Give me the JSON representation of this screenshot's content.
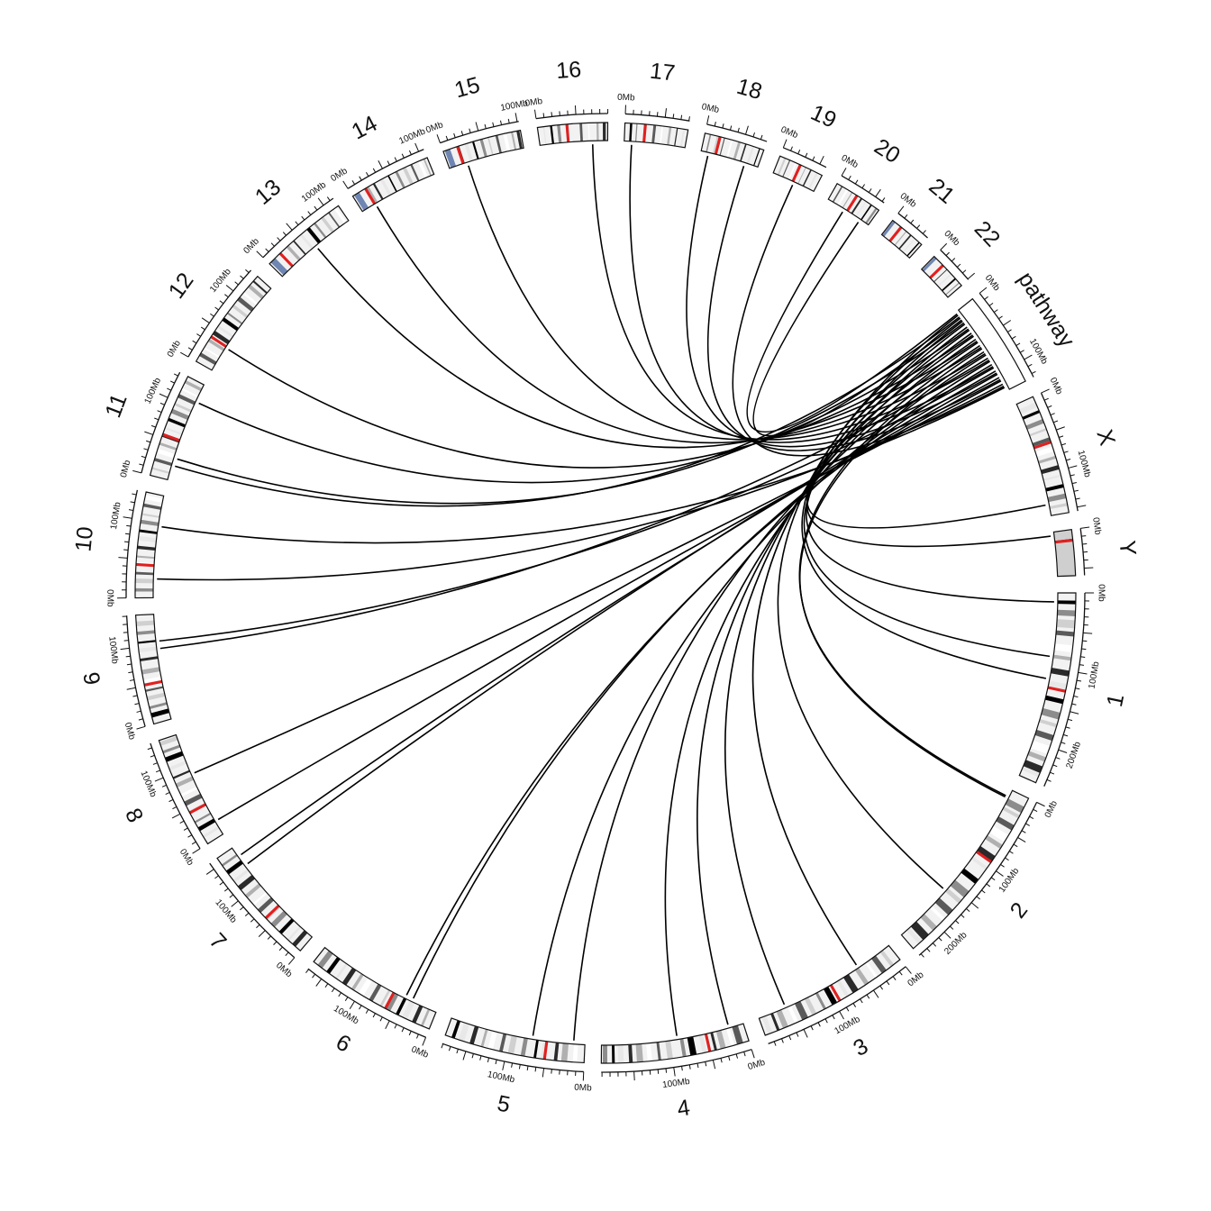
{
  "chart_data": {
    "type": "circos",
    "tick_label_suffix": "Mb",
    "sectors": [
      {
        "name": "1",
        "length": 249,
        "kind": "chr",
        "bands": [
          0.04,
          0.09,
          0.14,
          0.2,
          0.27,
          0.33,
          0.4,
          0.47,
          0.55,
          0.62,
          0.68,
          0.74,
          0.8,
          0.86,
          0.91,
          0.95
        ],
        "centromere": 0.5
      },
      {
        "name": "2",
        "length": 243,
        "kind": "chr",
        "bands": [
          0.05,
          0.1,
          0.16,
          0.22,
          0.28,
          0.35,
          0.42,
          0.5,
          0.58,
          0.64,
          0.71,
          0.77,
          0.83,
          0.89,
          0.94
        ],
        "centromere": 0.38
      },
      {
        "name": "3",
        "length": 198,
        "kind": "chr",
        "bands": [
          0.05,
          0.11,
          0.18,
          0.25,
          0.33,
          0.4,
          0.49,
          0.57,
          0.64,
          0.7,
          0.77,
          0.84,
          0.9,
          0.95
        ],
        "centromere": 0.46
      },
      {
        "name": "4",
        "length": 191,
        "kind": "chr",
        "bands": [
          0.04,
          0.1,
          0.16,
          0.22,
          0.29,
          0.36,
          0.43,
          0.52,
          0.6,
          0.66,
          0.72,
          0.79,
          0.85,
          0.91,
          0.96
        ],
        "centromere": 0.26
      },
      {
        "name": "5",
        "length": 181,
        "kind": "chr",
        "bands": [
          0.05,
          0.12,
          0.19,
          0.27,
          0.34,
          0.42,
          0.5,
          0.58,
          0.65,
          0.72,
          0.79,
          0.86,
          0.93
        ],
        "centromere": 0.27
      },
      {
        "name": "6",
        "length": 171,
        "kind": "chr",
        "bands": [
          0.05,
          0.11,
          0.18,
          0.25,
          0.32,
          0.39,
          0.47,
          0.55,
          0.63,
          0.7,
          0.78,
          0.85,
          0.92
        ],
        "centromere": 0.35
      },
      {
        "name": "7",
        "length": 159,
        "kind": "chr",
        "bands": [
          0.05,
          0.12,
          0.2,
          0.28,
          0.36,
          0.44,
          0.52,
          0.6,
          0.68,
          0.76,
          0.84,
          0.92
        ],
        "centromere": 0.37
      },
      {
        "name": "8",
        "length": 146,
        "kind": "chr",
        "bands": [
          0.06,
          0.13,
          0.21,
          0.3,
          0.38,
          0.47,
          0.56,
          0.64,
          0.72,
          0.8,
          0.88,
          0.95
        ],
        "centromere": 0.3
      },
      {
        "name": "9",
        "length": 141,
        "kind": "chr",
        "bands": [
          0.06,
          0.14,
          0.22,
          0.3,
          0.38,
          0.46,
          0.58,
          0.66,
          0.74,
          0.82,
          0.9
        ],
        "centromere": 0.35
      },
      {
        "name": "10",
        "length": 136,
        "kind": "chr",
        "bands": [
          0.06,
          0.14,
          0.22,
          0.3,
          0.38,
          0.46,
          0.54,
          0.62,
          0.7,
          0.78,
          0.86,
          0.93
        ],
        "centromere": 0.3
      },
      {
        "name": "11",
        "length": 135,
        "kind": "chr",
        "bands": [
          0.06,
          0.14,
          0.22,
          0.3,
          0.38,
          0.46,
          0.54,
          0.62,
          0.7,
          0.78,
          0.86,
          0.93
        ],
        "centromere": 0.39
      },
      {
        "name": "12",
        "length": 134,
        "kind": "chr",
        "bands": [
          0.06,
          0.14,
          0.22,
          0.3,
          0.38,
          0.46,
          0.54,
          0.62,
          0.7,
          0.78,
          0.86,
          0.93
        ],
        "centromere": 0.26
      },
      {
        "name": "13",
        "length": 115,
        "kind": "chr",
        "bands": [
          0.16,
          0.26,
          0.36,
          0.46,
          0.56,
          0.66,
          0.76,
          0.86,
          0.94
        ],
        "centromere": 0.15,
        "acro": true
      },
      {
        "name": "14",
        "length": 107,
        "kind": "chr",
        "bands": [
          0.18,
          0.28,
          0.38,
          0.48,
          0.58,
          0.68,
          0.78,
          0.88,
          0.95
        ],
        "centromere": 0.16,
        "acro": true
      },
      {
        "name": "15",
        "length": 102,
        "kind": "chr",
        "bands": [
          0.18,
          0.28,
          0.38,
          0.48,
          0.58,
          0.68,
          0.78,
          0.88,
          0.95
        ],
        "centromere": 0.17,
        "acro": true
      },
      {
        "name": "16",
        "length": 90,
        "kind": "chr",
        "bands": [
          0.08,
          0.18,
          0.28,
          0.4,
          0.6,
          0.72,
          0.84,
          0.93
        ],
        "centromere": 0.4
      },
      {
        "name": "17",
        "length": 81,
        "kind": "chr",
        "bands": [
          0.08,
          0.18,
          0.3,
          0.45,
          0.58,
          0.7,
          0.82,
          0.92
        ],
        "centromere": 0.3
      },
      {
        "name": "18",
        "length": 78,
        "kind": "chr",
        "bands": [
          0.08,
          0.2,
          0.32,
          0.44,
          0.56,
          0.68,
          0.8,
          0.92
        ],
        "centromere": 0.23
      },
      {
        "name": "19",
        "length": 59,
        "kind": "chr",
        "bands": [
          0.1,
          0.22,
          0.36,
          0.6,
          0.72,
          0.86
        ],
        "centromere": 0.45
      },
      {
        "name": "20",
        "length": 63,
        "kind": "chr",
        "bands": [
          0.1,
          0.22,
          0.34,
          0.56,
          0.68,
          0.8,
          0.92
        ],
        "centromere": 0.44
      },
      {
        "name": "21",
        "length": 48,
        "kind": "chr",
        "bands": [
          0.3,
          0.45,
          0.6,
          0.75,
          0.9
        ],
        "centromere": 0.25,
        "acro": true
      },
      {
        "name": "22",
        "length": 51,
        "kind": "chr",
        "bands": [
          0.3,
          0.45,
          0.6,
          0.75,
          0.9
        ],
        "centromere": 0.28,
        "acro": true
      },
      {
        "name": "pathway",
        "length": 125,
        "kind": "blank",
        "bands": [],
        "centromere": null
      },
      {
        "name": "X",
        "length": 155,
        "kind": "chr",
        "bands": [
          0.05,
          0.12,
          0.2,
          0.28,
          0.36,
          0.44,
          0.52,
          0.6,
          0.68,
          0.76,
          0.84,
          0.92
        ],
        "centromere": 0.39
      },
      {
        "name": "Y",
        "length": 59,
        "kind": "chr",
        "bands": [
          0.2
        ],
        "centromere": 0.2,
        "pale": true
      }
    ],
    "links": [
      {
        "from": [
          "1",
          115
        ],
        "to": [
          "pathway",
          10
        ]
      },
      {
        "from": [
          "1",
          85
        ],
        "to": [
          "pathway",
          20
        ]
      },
      {
        "from": [
          "1",
          12
        ],
        "to": [
          "pathway",
          30
        ]
      },
      {
        "from": [
          "Y",
          5
        ],
        "to": [
          "pathway",
          40
        ]
      },
      {
        "from": [
          "X",
          140
        ],
        "to": [
          "pathway",
          50
        ]
      },
      {
        "from": [
          "2",
          10
        ],
        "to": [
          "pathway",
          60
        ]
      },
      {
        "from": [
          "2",
          12
        ],
        "to": [
          "pathway",
          65
        ]
      },
      {
        "from": [
          "2",
          160
        ],
        "to": [
          "pathway",
          5
        ]
      },
      {
        "from": [
          "3",
          50
        ],
        "to": [
          "pathway",
          15
        ]
      },
      {
        "from": [
          "3",
          160
        ],
        "to": [
          "pathway",
          25
        ]
      },
      {
        "from": [
          "4",
          20
        ],
        "to": [
          "pathway",
          35
        ]
      },
      {
        "from": [
          "4",
          90
        ],
        "to": [
          "pathway",
          45
        ]
      },
      {
        "from": [
          "5",
          15
        ],
        "to": [
          "pathway",
          55
        ]
      },
      {
        "from": [
          "5",
          70
        ],
        "to": [
          "pathway",
          70
        ]
      },
      {
        "from": [
          "6",
          35
        ],
        "to": [
          "pathway",
          80
        ]
      },
      {
        "from": [
          "6",
          45
        ],
        "to": [
          "pathway",
          85
        ]
      },
      {
        "from": [
          "7",
          130
        ],
        "to": [
          "pathway",
          95
        ]
      },
      {
        "from": [
          "7",
          145
        ],
        "to": [
          "pathway",
          100
        ]
      },
      {
        "from": [
          "8",
          20
        ],
        "to": [
          "pathway",
          105
        ]
      },
      {
        "from": [
          "8",
          90
        ],
        "to": [
          "pathway",
          110
        ]
      },
      {
        "from": [
          "9",
          95
        ],
        "to": [
          "pathway",
          75
        ]
      },
      {
        "from": [
          "9",
          105
        ],
        "to": [
          "pathway",
          90
        ]
      },
      {
        "from": [
          "10",
          25
        ],
        "to": [
          "pathway",
          115
        ]
      },
      {
        "from": [
          "10",
          95
        ],
        "to": [
          "pathway",
          120
        ]
      },
      {
        "from": [
          "11",
          20
        ],
        "to": [
          "pathway",
          8
        ]
      },
      {
        "from": [
          "11",
          30
        ],
        "to": [
          "pathway",
          18
        ]
      },
      {
        "from": [
          "11",
          110
        ],
        "to": [
          "pathway",
          28
        ]
      },
      {
        "from": [
          "12",
          35
        ],
        "to": [
          "pathway",
          38
        ]
      },
      {
        "from": [
          "13",
          60
        ],
        "to": [
          "pathway",
          48
        ]
      },
      {
        "from": [
          "14",
          20
        ],
        "to": [
          "pathway",
          58
        ]
      },
      {
        "from": [
          "15",
          25
        ],
        "to": [
          "pathway",
          68
        ]
      },
      {
        "from": [
          "16",
          70
        ],
        "to": [
          "pathway",
          78
        ]
      },
      {
        "from": [
          "17",
          10
        ],
        "to": [
          "pathway",
          88
        ]
      },
      {
        "from": [
          "18",
          10
        ],
        "to": [
          "pathway",
          98
        ]
      },
      {
        "from": [
          "18",
          60
        ],
        "to": [
          "pathway",
          108
        ]
      },
      {
        "from": [
          "19",
          30
        ],
        "to": [
          "pathway",
          118
        ]
      },
      {
        "from": [
          "20",
          25
        ],
        "to": [
          "pathway",
          3
        ]
      },
      {
        "from": [
          "20",
          50
        ],
        "to": [
          "pathway",
          13
        ]
      }
    ]
  }
}
